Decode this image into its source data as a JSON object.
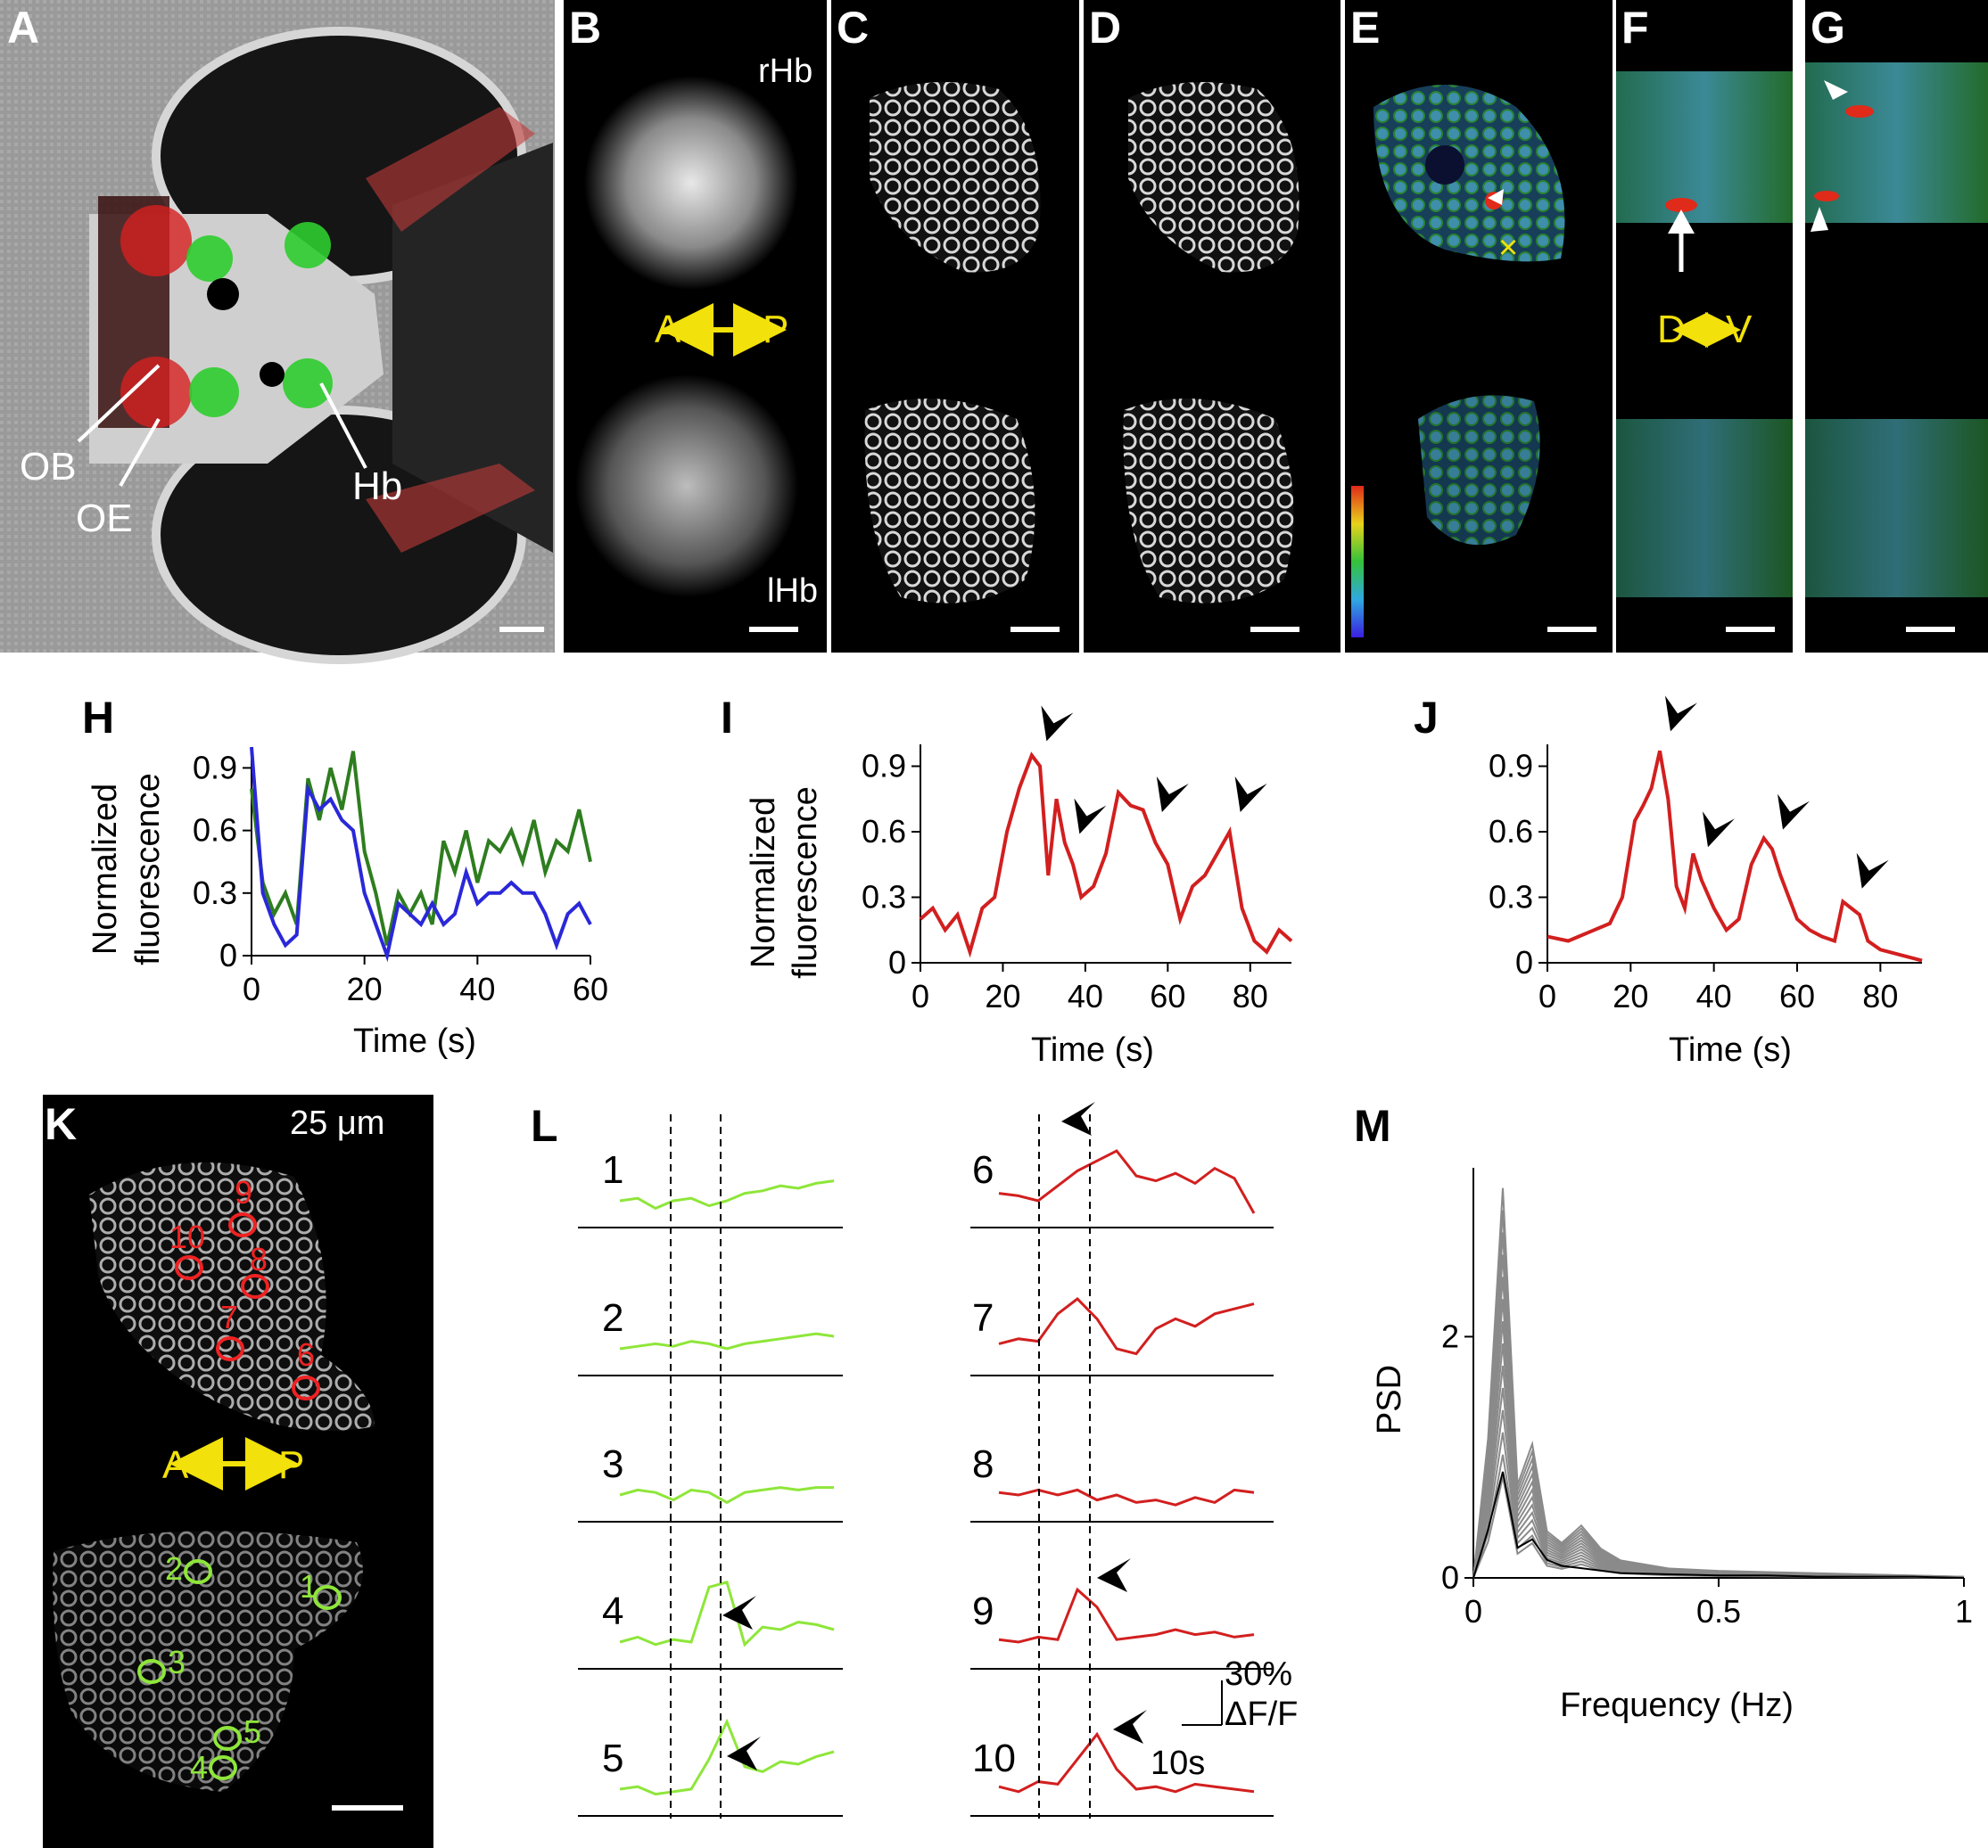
{
  "panels": {
    "A": {
      "letter": "A",
      "labels": {
        "ob": "OB",
        "oe": "OE",
        "hb": "Hb"
      }
    },
    "B": {
      "letter": "B",
      "rhb": "rHb",
      "lhb": "lHb",
      "ap": "A",
      "pp": "P"
    },
    "C": {
      "letter": "C"
    },
    "D": {
      "letter": "D"
    },
    "E": {
      "letter": "E",
      "marker": "×"
    },
    "F": {
      "letter": "F",
      "dv_d": "D",
      "dv_v": "V"
    },
    "G": {
      "letter": "G"
    },
    "H": {
      "letter": "H",
      "ylabel_1": "Normalized",
      "ylabel_2": "fluorescence",
      "xlabel": "Time (s)"
    },
    "I": {
      "letter": "I",
      "ylabel_1": "Normalized",
      "ylabel_2": "fluorescence",
      "xlabel": "Time (s)"
    },
    "J": {
      "letter": "J",
      "xlabel": "Time (s)"
    },
    "K": {
      "letter": "K",
      "depth": "25 μm",
      "ap": "A",
      "pp": "P",
      "rois_red": [
        "6",
        "7",
        "8",
        "9",
        "10"
      ],
      "rois_green": [
        "1",
        "2",
        "3",
        "4",
        "5"
      ]
    },
    "L": {
      "letter": "L",
      "trace_labels": [
        "1",
        "2",
        "3",
        "4",
        "5",
        "6",
        "7",
        "8",
        "9",
        "10"
      ],
      "scale_y": "30%",
      "scale_y2": "ΔF/F",
      "scale_x": "10s"
    },
    "M": {
      "letter": "M",
      "ylabel": "PSD",
      "xlabel": "Frequency (Hz)"
    }
  },
  "colors": {
    "red": "#d21f1f",
    "green": "#2e7d1f",
    "blue": "#2a28d8",
    "lime": "#8ee63a",
    "yellow": "#f2e10a",
    "gray": "#8a8a8a"
  },
  "chart_data": [
    {
      "panel": "H",
      "type": "line",
      "xlabel": "Time (s)",
      "ylabel": "Normalized fluorescence",
      "xlim": [
        0,
        60
      ],
      "ylim": [
        0,
        1
      ],
      "xticks": [
        0,
        20,
        40,
        60
      ],
      "yticks": [
        0,
        0.3,
        0.6,
        0.9
      ],
      "ytick_labels": [
        "0",
        "0.3",
        "0.6",
        "0.9"
      ],
      "series": [
        {
          "color": "#2e7d1f",
          "x": [
            0,
            2,
            4,
            6,
            8,
            10,
            12,
            14,
            16,
            18,
            20,
            22,
            24,
            26,
            28,
            30,
            32,
            34,
            36,
            38,
            40,
            42,
            44,
            46,
            48,
            50,
            52,
            54,
            56,
            58,
            60
          ],
          "y": [
            0.8,
            0.35,
            0.2,
            0.3,
            0.15,
            0.85,
            0.65,
            0.9,
            0.7,
            0.98,
            0.5,
            0.3,
            0.05,
            0.3,
            0.2,
            0.3,
            0.15,
            0.55,
            0.4,
            0.6,
            0.35,
            0.55,
            0.5,
            0.6,
            0.45,
            0.65,
            0.4,
            0.55,
            0.5,
            0.7,
            0.45
          ]
        },
        {
          "color": "#2a28d8",
          "x": [
            0,
            2,
            4,
            6,
            8,
            10,
            12,
            14,
            16,
            18,
            20,
            22,
            24,
            26,
            28,
            30,
            32,
            34,
            36,
            38,
            40,
            42,
            44,
            46,
            48,
            50,
            52,
            54,
            56,
            58,
            60
          ],
          "y": [
            1.0,
            0.3,
            0.15,
            0.05,
            0.1,
            0.8,
            0.7,
            0.75,
            0.65,
            0.6,
            0.3,
            0.15,
            0.0,
            0.25,
            0.2,
            0.15,
            0.25,
            0.15,
            0.2,
            0.4,
            0.25,
            0.3,
            0.3,
            0.35,
            0.3,
            0.3,
            0.2,
            0.05,
            0.2,
            0.25,
            0.15
          ]
        }
      ]
    },
    {
      "panel": "I",
      "type": "line",
      "xlabel": "Time (s)",
      "ylabel": "Normalized fluorescence",
      "xlim": [
        0,
        90
      ],
      "ylim": [
        0,
        1
      ],
      "xticks": [
        0,
        20,
        40,
        60,
        80
      ],
      "yticks": [
        0,
        0.3,
        0.6,
        0.9
      ],
      "ytick_labels": [
        "0",
        "0.3",
        "0.6",
        "0.9"
      ],
      "series": [
        {
          "color": "#d21f1f",
          "x": [
            0,
            3,
            6,
            9,
            12,
            15,
            18,
            21,
            24,
            27,
            29,
            31,
            33,
            35,
            37,
            39,
            42,
            45,
            48,
            51,
            54,
            57,
            60,
            63,
            66,
            69,
            72,
            75,
            78,
            81,
            84,
            87,
            90
          ],
          "y": [
            0.2,
            0.25,
            0.15,
            0.22,
            0.05,
            0.25,
            0.3,
            0.6,
            0.8,
            0.95,
            0.9,
            0.4,
            0.75,
            0.55,
            0.45,
            0.3,
            0.35,
            0.5,
            0.78,
            0.72,
            0.7,
            0.55,
            0.45,
            0.2,
            0.35,
            0.4,
            0.5,
            0.6,
            0.25,
            0.1,
            0.05,
            0.15,
            0.1
          ]
        }
      ],
      "arrowheads_at": [
        28,
        36,
        56,
        75
      ]
    },
    {
      "panel": "J",
      "type": "line",
      "xlabel": "Time (s)",
      "xlim": [
        0,
        90
      ],
      "ylim": [
        0,
        1
      ],
      "xticks": [
        0,
        20,
        40,
        60,
        80
      ],
      "yticks": [
        0,
        0.3,
        0.6,
        0.9
      ],
      "ytick_labels": [
        "0",
        "0.3",
        "0.6",
        "0.9"
      ],
      "series": [
        {
          "color": "#d21f1f",
          "x": [
            0,
            5,
            10,
            15,
            18,
            21,
            23,
            25,
            27,
            29,
            31,
            33,
            35,
            37,
            40,
            43,
            46,
            49,
            52,
            54,
            56,
            58,
            60,
            63,
            66,
            69,
            71,
            73,
            75,
            77,
            80,
            84,
            88,
            90
          ],
          "y": [
            0.12,
            0.1,
            0.14,
            0.18,
            0.3,
            0.65,
            0.72,
            0.8,
            0.97,
            0.75,
            0.35,
            0.25,
            0.5,
            0.38,
            0.25,
            0.15,
            0.2,
            0.45,
            0.57,
            0.52,
            0.4,
            0.3,
            0.2,
            0.15,
            0.12,
            0.1,
            0.28,
            0.25,
            0.22,
            0.1,
            0.06,
            0.04,
            0.02,
            0.01
          ]
        }
      ],
      "arrowheads_at": [
        27,
        36,
        54,
        73
      ]
    },
    {
      "panel": "M",
      "type": "line",
      "xlabel": "Frequency (Hz)",
      "ylabel": "PSD",
      "xlim": [
        0,
        1
      ],
      "ylim": [
        0,
        3.4
      ],
      "xticks": [
        0,
        0.5,
        1
      ],
      "xtick_labels": [
        "0",
        "0.5",
        "1"
      ],
      "yticks": [
        0,
        2
      ],
      "ytick_labels": [
        "0",
        "2"
      ],
      "series": [
        {
          "name": "",
          "color": "#000000",
          "x": [
            0,
            0.03,
            0.06,
            0.09,
            0.12,
            0.15,
            0.18,
            0.22,
            0.26,
            0.3,
            0.4,
            0.5,
            0.6,
            0.7,
            0.8,
            0.9,
            1.0
          ],
          "y": [
            0.0,
            0.4,
            0.88,
            0.25,
            0.32,
            0.15,
            0.1,
            0.08,
            0.06,
            0.04,
            0.03,
            0.02,
            0.02,
            0.01,
            0.01,
            0.01,
            0.0
          ]
        },
        {
          "name": "",
          "color": "#8a8a8a",
          "x": [
            0,
            0.03,
            0.06,
            0.09,
            0.12,
            0.15,
            0.18,
            0.22,
            0.26,
            0.3,
            0.4,
            0.5,
            0.6,
            0.7,
            0.8,
            0.9,
            1.0
          ],
          "y": [
            0.0,
            1.2,
            3.35,
            0.8,
            1.15,
            0.4,
            0.3,
            0.45,
            0.25,
            0.15,
            0.08,
            0.06,
            0.05,
            0.04,
            0.03,
            0.02,
            0.01
          ]
        }
      ]
    }
  ]
}
